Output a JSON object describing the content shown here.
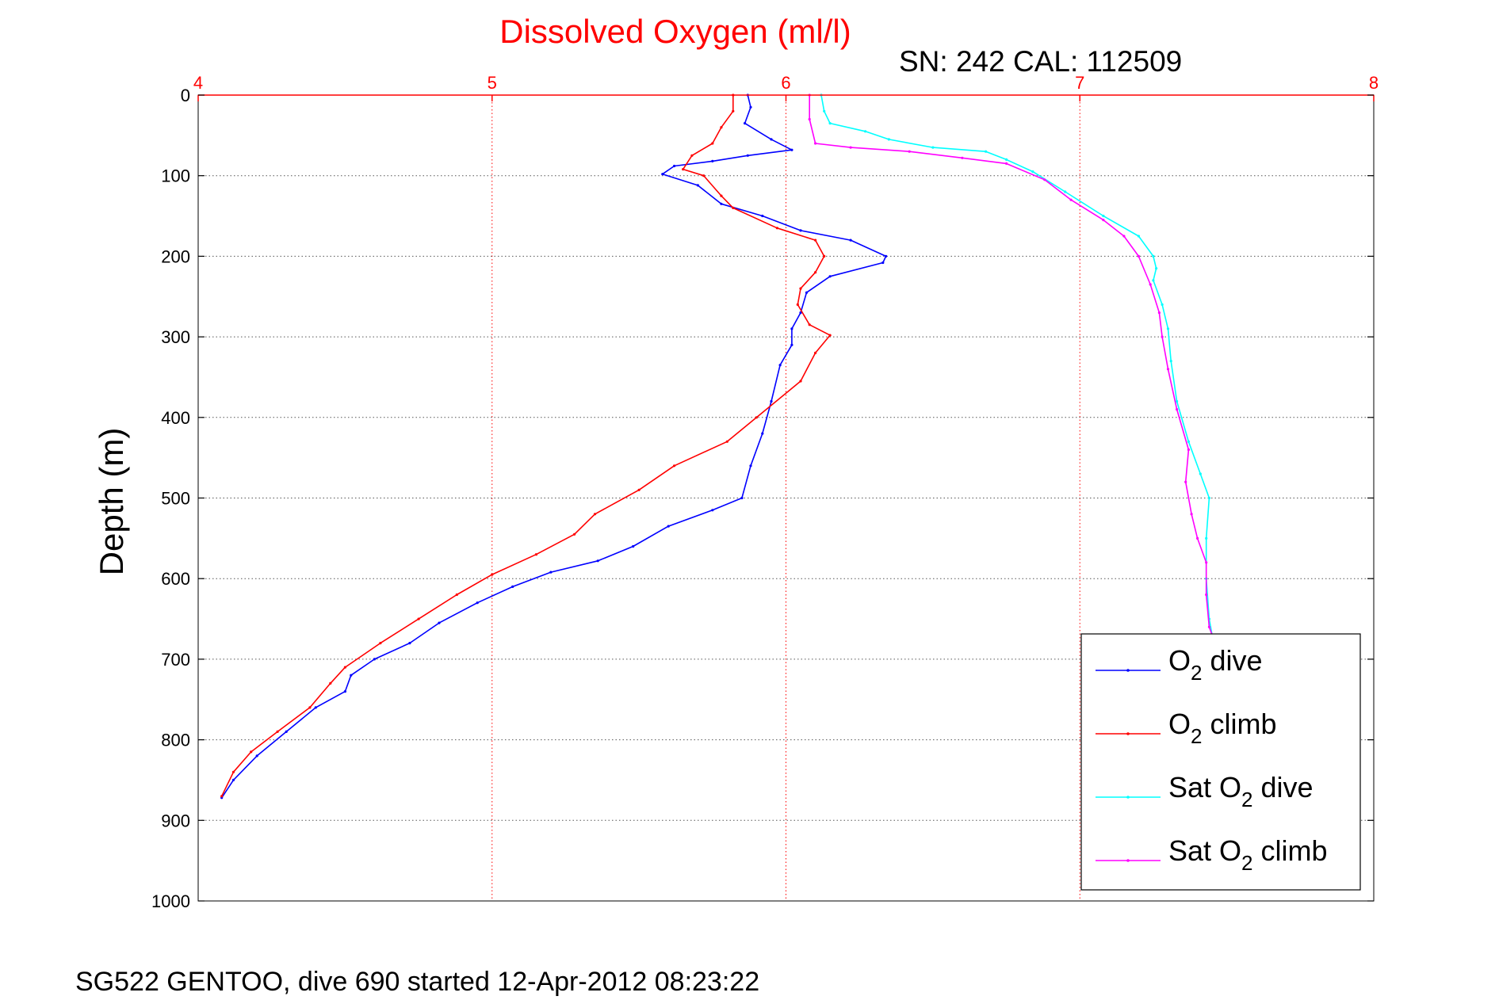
{
  "chart_data": {
    "type": "line",
    "title": "Dissolved Oxygen (ml/l)",
    "subtitle": "SN: 242  CAL: 112509",
    "footer": "SG522 GENTOO, dive 690 started 12-Apr-2012 08:23:22",
    "xlabel": "",
    "ylabel": "Depth (m)",
    "xlim": [
      4,
      8
    ],
    "ylim": [
      0,
      1000
    ],
    "y_reversed": true,
    "x_axis_position": "top",
    "x_ticks": [
      "4",
      "5",
      "6",
      "7",
      "8"
    ],
    "y_ticks": [
      "0",
      "100",
      "200",
      "300",
      "400",
      "500",
      "600",
      "700",
      "800",
      "900",
      "1000"
    ],
    "grid": true,
    "legend_position": "bottom-right",
    "colors": {
      "title": "#ff0000",
      "xticks": "#ff0000",
      "grid_x": "#ff0000",
      "grid_y": "#555555"
    },
    "series": [
      {
        "legend_main": "O",
        "legend_sub": "2",
        "legend_suffix": " dive",
        "color": "#0000ff",
        "points": [
          [
            5.87,
            0
          ],
          [
            5.88,
            15
          ],
          [
            5.86,
            35
          ],
          [
            5.95,
            55
          ],
          [
            6.02,
            68
          ],
          [
            5.87,
            75
          ],
          [
            5.75,
            82
          ],
          [
            5.62,
            88
          ],
          [
            5.58,
            98
          ],
          [
            5.7,
            112
          ],
          [
            5.78,
            135
          ],
          [
            5.92,
            150
          ],
          [
            6.05,
            168
          ],
          [
            6.22,
            180
          ],
          [
            6.34,
            200
          ],
          [
            6.33,
            208
          ],
          [
            6.15,
            225
          ],
          [
            6.07,
            245
          ],
          [
            6.05,
            270
          ],
          [
            6.02,
            290
          ],
          [
            6.02,
            310
          ],
          [
            5.98,
            335
          ],
          [
            5.95,
            380
          ],
          [
            5.92,
            420
          ],
          [
            5.88,
            460
          ],
          [
            5.85,
            500
          ],
          [
            5.75,
            515
          ],
          [
            5.6,
            535
          ],
          [
            5.48,
            560
          ],
          [
            5.36,
            578
          ],
          [
            5.2,
            592
          ],
          [
            5.07,
            610
          ],
          [
            4.95,
            630
          ],
          [
            4.82,
            655
          ],
          [
            4.72,
            680
          ],
          [
            4.6,
            700
          ],
          [
            4.52,
            720
          ],
          [
            4.5,
            740
          ],
          [
            4.4,
            760
          ],
          [
            4.3,
            790
          ],
          [
            4.2,
            820
          ],
          [
            4.12,
            850
          ],
          [
            4.08,
            872
          ]
        ]
      },
      {
        "legend_main": "O",
        "legend_sub": "2",
        "legend_suffix": " climb",
        "color": "#ff0000",
        "points": [
          [
            5.82,
            0
          ],
          [
            5.82,
            20
          ],
          [
            5.78,
            40
          ],
          [
            5.75,
            60
          ],
          [
            5.68,
            75
          ],
          [
            5.65,
            92
          ],
          [
            5.72,
            100
          ],
          [
            5.78,
            125
          ],
          [
            5.82,
            140
          ],
          [
            5.97,
            165
          ],
          [
            6.1,
            180
          ],
          [
            6.13,
            200
          ],
          [
            6.1,
            220
          ],
          [
            6.05,
            240
          ],
          [
            6.04,
            260
          ],
          [
            6.08,
            285
          ],
          [
            6.15,
            298
          ],
          [
            6.1,
            320
          ],
          [
            6.05,
            355
          ],
          [
            5.9,
            400
          ],
          [
            5.8,
            430
          ],
          [
            5.62,
            460
          ],
          [
            5.5,
            490
          ],
          [
            5.35,
            520
          ],
          [
            5.28,
            545
          ],
          [
            5.15,
            570
          ],
          [
            5.0,
            595
          ],
          [
            4.88,
            620
          ],
          [
            4.75,
            650
          ],
          [
            4.62,
            680
          ],
          [
            4.5,
            710
          ],
          [
            4.45,
            730
          ],
          [
            4.38,
            760
          ],
          [
            4.27,
            790
          ],
          [
            4.18,
            815
          ],
          [
            4.12,
            840
          ],
          [
            4.08,
            870
          ]
        ]
      },
      {
        "legend_main": "Sat O",
        "legend_sub": "2",
        "legend_suffix": " dive",
        "color": "#00ffff",
        "points": [
          [
            6.12,
            0
          ],
          [
            6.13,
            20
          ],
          [
            6.15,
            35
          ],
          [
            6.27,
            45
          ],
          [
            6.35,
            55
          ],
          [
            6.5,
            65
          ],
          [
            6.68,
            70
          ],
          [
            6.75,
            80
          ],
          [
            6.84,
            95
          ],
          [
            6.95,
            120
          ],
          [
            7.08,
            150
          ],
          [
            7.2,
            175
          ],
          [
            7.25,
            200
          ],
          [
            7.26,
            215
          ],
          [
            7.25,
            230
          ],
          [
            7.28,
            260
          ],
          [
            7.3,
            290
          ],
          [
            7.31,
            330
          ],
          [
            7.33,
            380
          ],
          [
            7.37,
            430
          ],
          [
            7.41,
            470
          ],
          [
            7.44,
            500
          ],
          [
            7.43,
            550
          ],
          [
            7.43,
            600
          ],
          [
            7.44,
            650
          ],
          [
            7.45,
            670
          ]
        ]
      },
      {
        "legend_main": "Sat O",
        "legend_sub": "2",
        "legend_suffix": " climb",
        "color": "#ff00ff",
        "points": [
          [
            6.08,
            0
          ],
          [
            6.08,
            30
          ],
          [
            6.1,
            60
          ],
          [
            6.22,
            65
          ],
          [
            6.42,
            70
          ],
          [
            6.6,
            78
          ],
          [
            6.75,
            85
          ],
          [
            6.88,
            105
          ],
          [
            6.97,
            130
          ],
          [
            7.08,
            155
          ],
          [
            7.15,
            175
          ],
          [
            7.2,
            200
          ],
          [
            7.24,
            235
          ],
          [
            7.27,
            270
          ],
          [
            7.28,
            300
          ],
          [
            7.3,
            340
          ],
          [
            7.33,
            390
          ],
          [
            7.37,
            440
          ],
          [
            7.36,
            480
          ],
          [
            7.38,
            520
          ],
          [
            7.4,
            550
          ],
          [
            7.43,
            580
          ],
          [
            7.43,
            620
          ],
          [
            7.44,
            660
          ],
          [
            7.45,
            670
          ]
        ]
      }
    ]
  }
}
